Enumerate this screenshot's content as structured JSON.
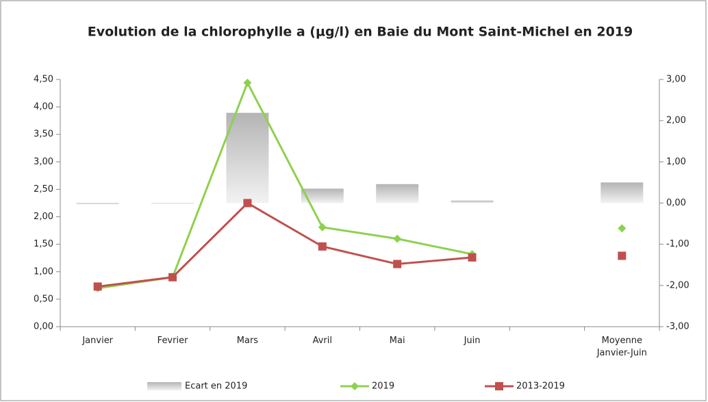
{
  "chart_data": {
    "type": "combo",
    "title": "Evolution de la chlorophylle a (µg/l) en Baie du Mont Saint-Michel en 2019",
    "categories": [
      "Janvier",
      "Fevrier",
      "Mars",
      "Avril",
      "Mai",
      "Juin",
      null,
      "Moyenne Janvier-Juin"
    ],
    "series": [
      {
        "name": "Ecart en 2019",
        "type": "bar",
        "axis": "y2",
        "color": "#c8c8c8",
        "values": [
          -0.03,
          -0.01,
          2.19,
          0.35,
          0.46,
          0.06,
          null,
          0.5
        ]
      },
      {
        "name": "2019",
        "type": "line",
        "marker": "diamond",
        "color": "#8dd14f",
        "values": [
          0.7,
          0.9,
          4.44,
          1.81,
          1.6,
          1.32,
          null,
          1.79
        ]
      },
      {
        "name": "2013-2019",
        "type": "line",
        "marker": "square",
        "color": "#c0504d",
        "values": [
          0.73,
          0.9,
          2.25,
          1.46,
          1.14,
          1.26,
          null,
          1.29
        ]
      }
    ],
    "ylim": [
      0,
      4.5
    ],
    "yticks": [
      {
        "value": 0,
        "label": "0,00"
      },
      {
        "value": 0.5,
        "label": "0,50"
      },
      {
        "value": 1,
        "label": "1,00"
      },
      {
        "value": 1.5,
        "label": "1,50"
      },
      {
        "value": 2,
        "label": "2,00"
      },
      {
        "value": 2.5,
        "label": "2,50"
      },
      {
        "value": 3,
        "label": "3,00"
      },
      {
        "value": 3.5,
        "label": "3,50"
      },
      {
        "value": 4,
        "label": "4,00"
      },
      {
        "value": 4.5,
        "label": "4,50"
      }
    ],
    "y2lim": [
      -3,
      3
    ],
    "y2ticks": [
      {
        "value": -3,
        "label": "-3,00"
      },
      {
        "value": -2,
        "label": "-2,00"
      },
      {
        "value": -1,
        "label": "-1,00"
      },
      {
        "value": 0,
        "label": "0,00"
      },
      {
        "value": 1,
        "label": "1,00"
      },
      {
        "value": 2,
        "label": "2,00"
      },
      {
        "value": 3,
        "label": "3,00"
      }
    ],
    "legend": "bottom"
  }
}
